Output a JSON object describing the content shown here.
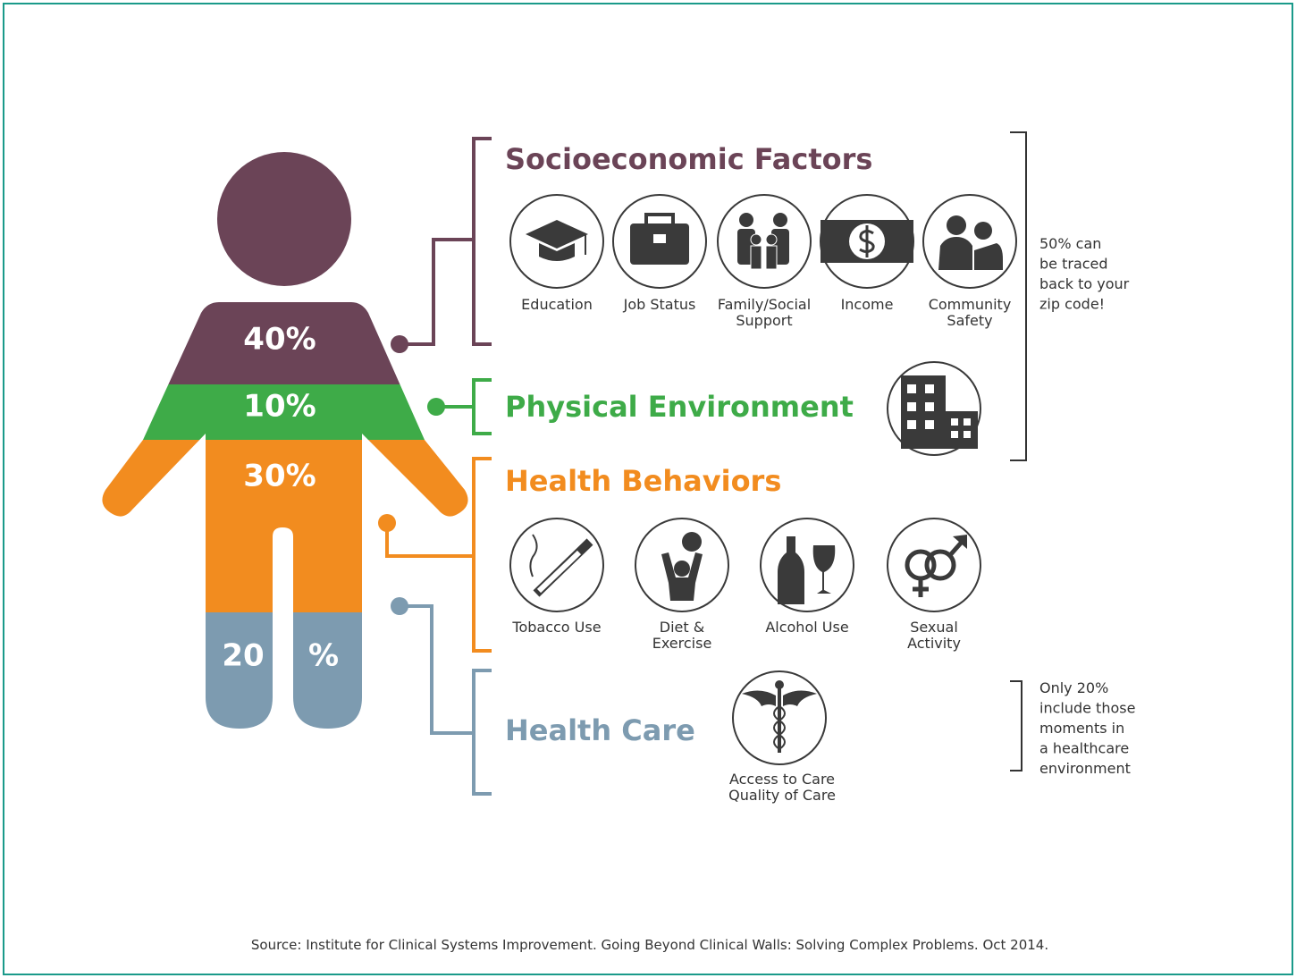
{
  "figure": {
    "segments": [
      "40%",
      "10%",
      "30%"
    ],
    "legs": [
      "20",
      "%"
    ]
  },
  "groups": [
    {
      "title": "Socioeconomic Factors",
      "items": [
        [
          "Education"
        ],
        [
          "Job Status"
        ],
        [
          "Family/Social",
          "Support"
        ],
        [
          "Income"
        ],
        [
          "Community",
          "Safety"
        ]
      ]
    },
    {
      "title": "Physical Environment",
      "items": []
    },
    {
      "title": "Health Behaviors",
      "items": [
        [
          "Tobacco Use"
        ],
        [
          "Diet &",
          "Exercise"
        ],
        [
          "Alcohol Use"
        ],
        [
          "Sexual",
          "Activity"
        ]
      ]
    },
    {
      "title": "Health Care",
      "items": [
        [
          "Access to Care",
          "Quality of Care"
        ]
      ]
    }
  ],
  "notes": [
    [
      "50% can",
      "be traced",
      "back to your",
      "zip code!"
    ],
    [
      "Only 20%",
      "include those",
      "moments in",
      "a healthcare",
      "environment"
    ]
  ],
  "source": "Source: Institute for Clinical Systems Improvement. Going Beyond Clinical Walls: Solving Complex Problems. Oct 2014."
}
